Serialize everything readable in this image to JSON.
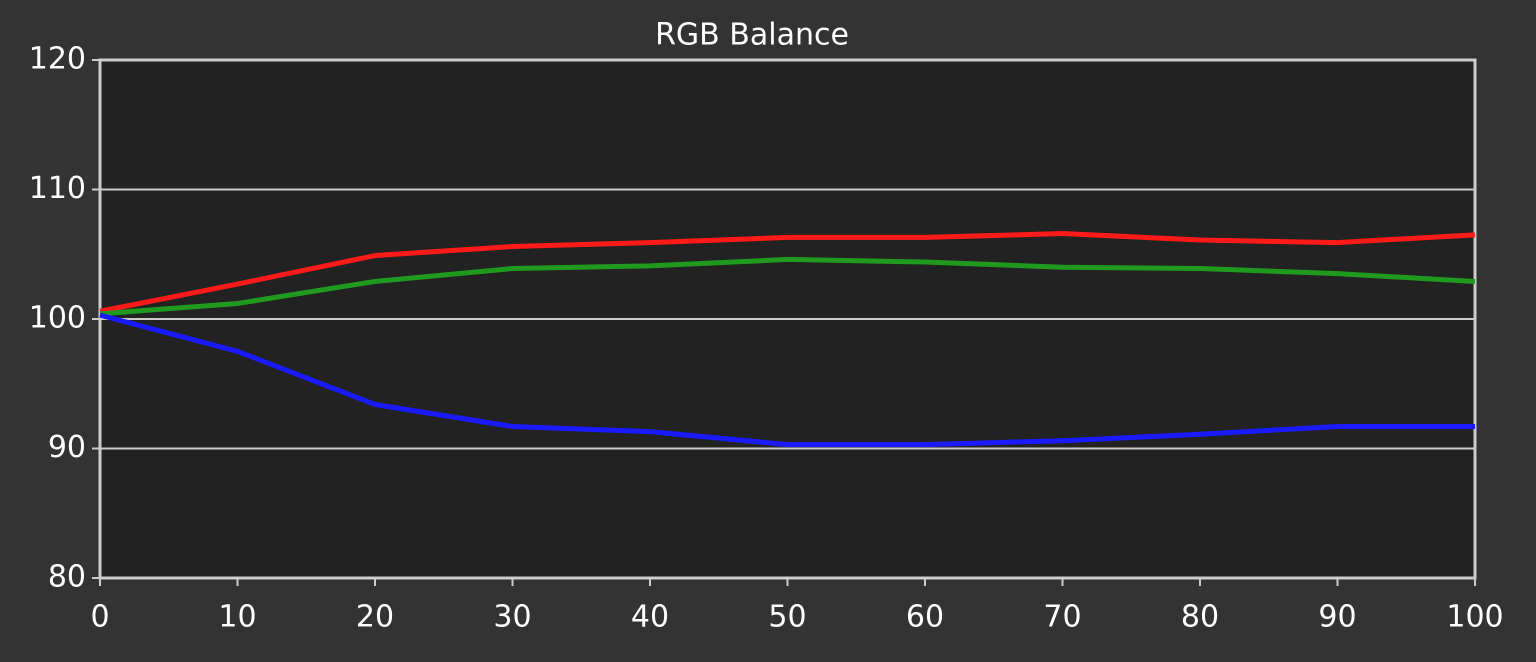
{
  "chart_data": {
    "type": "line",
    "title": "RGB Balance",
    "x": [
      0,
      10,
      20,
      30,
      40,
      50,
      60,
      70,
      80,
      90,
      100
    ],
    "series": [
      {
        "color": "#ff1a1a",
        "values": [
          100.6,
          102.7,
          104.9,
          105.6,
          105.9,
          106.3,
          106.3,
          106.6,
          106.1,
          105.9,
          106.5
        ]
      },
      {
        "color": "#1f9a1f",
        "values": [
          100.4,
          101.2,
          102.9,
          103.9,
          104.1,
          104.6,
          104.4,
          104.0,
          103.9,
          103.5,
          102.9
        ]
      },
      {
        "color": "#1a1aff",
        "values": [
          100.3,
          97.5,
          93.4,
          91.7,
          91.3,
          90.3,
          90.3,
          90.6,
          91.1,
          91.7,
          91.7
        ]
      }
    ],
    "xlim": [
      0,
      100
    ],
    "xticks": [
      0,
      10,
      20,
      30,
      40,
      50,
      60,
      70,
      80,
      90,
      100
    ],
    "ylim": [
      80,
      120
    ],
    "yticks": [
      80,
      90,
      100,
      110,
      120
    ],
    "grid": true
  }
}
